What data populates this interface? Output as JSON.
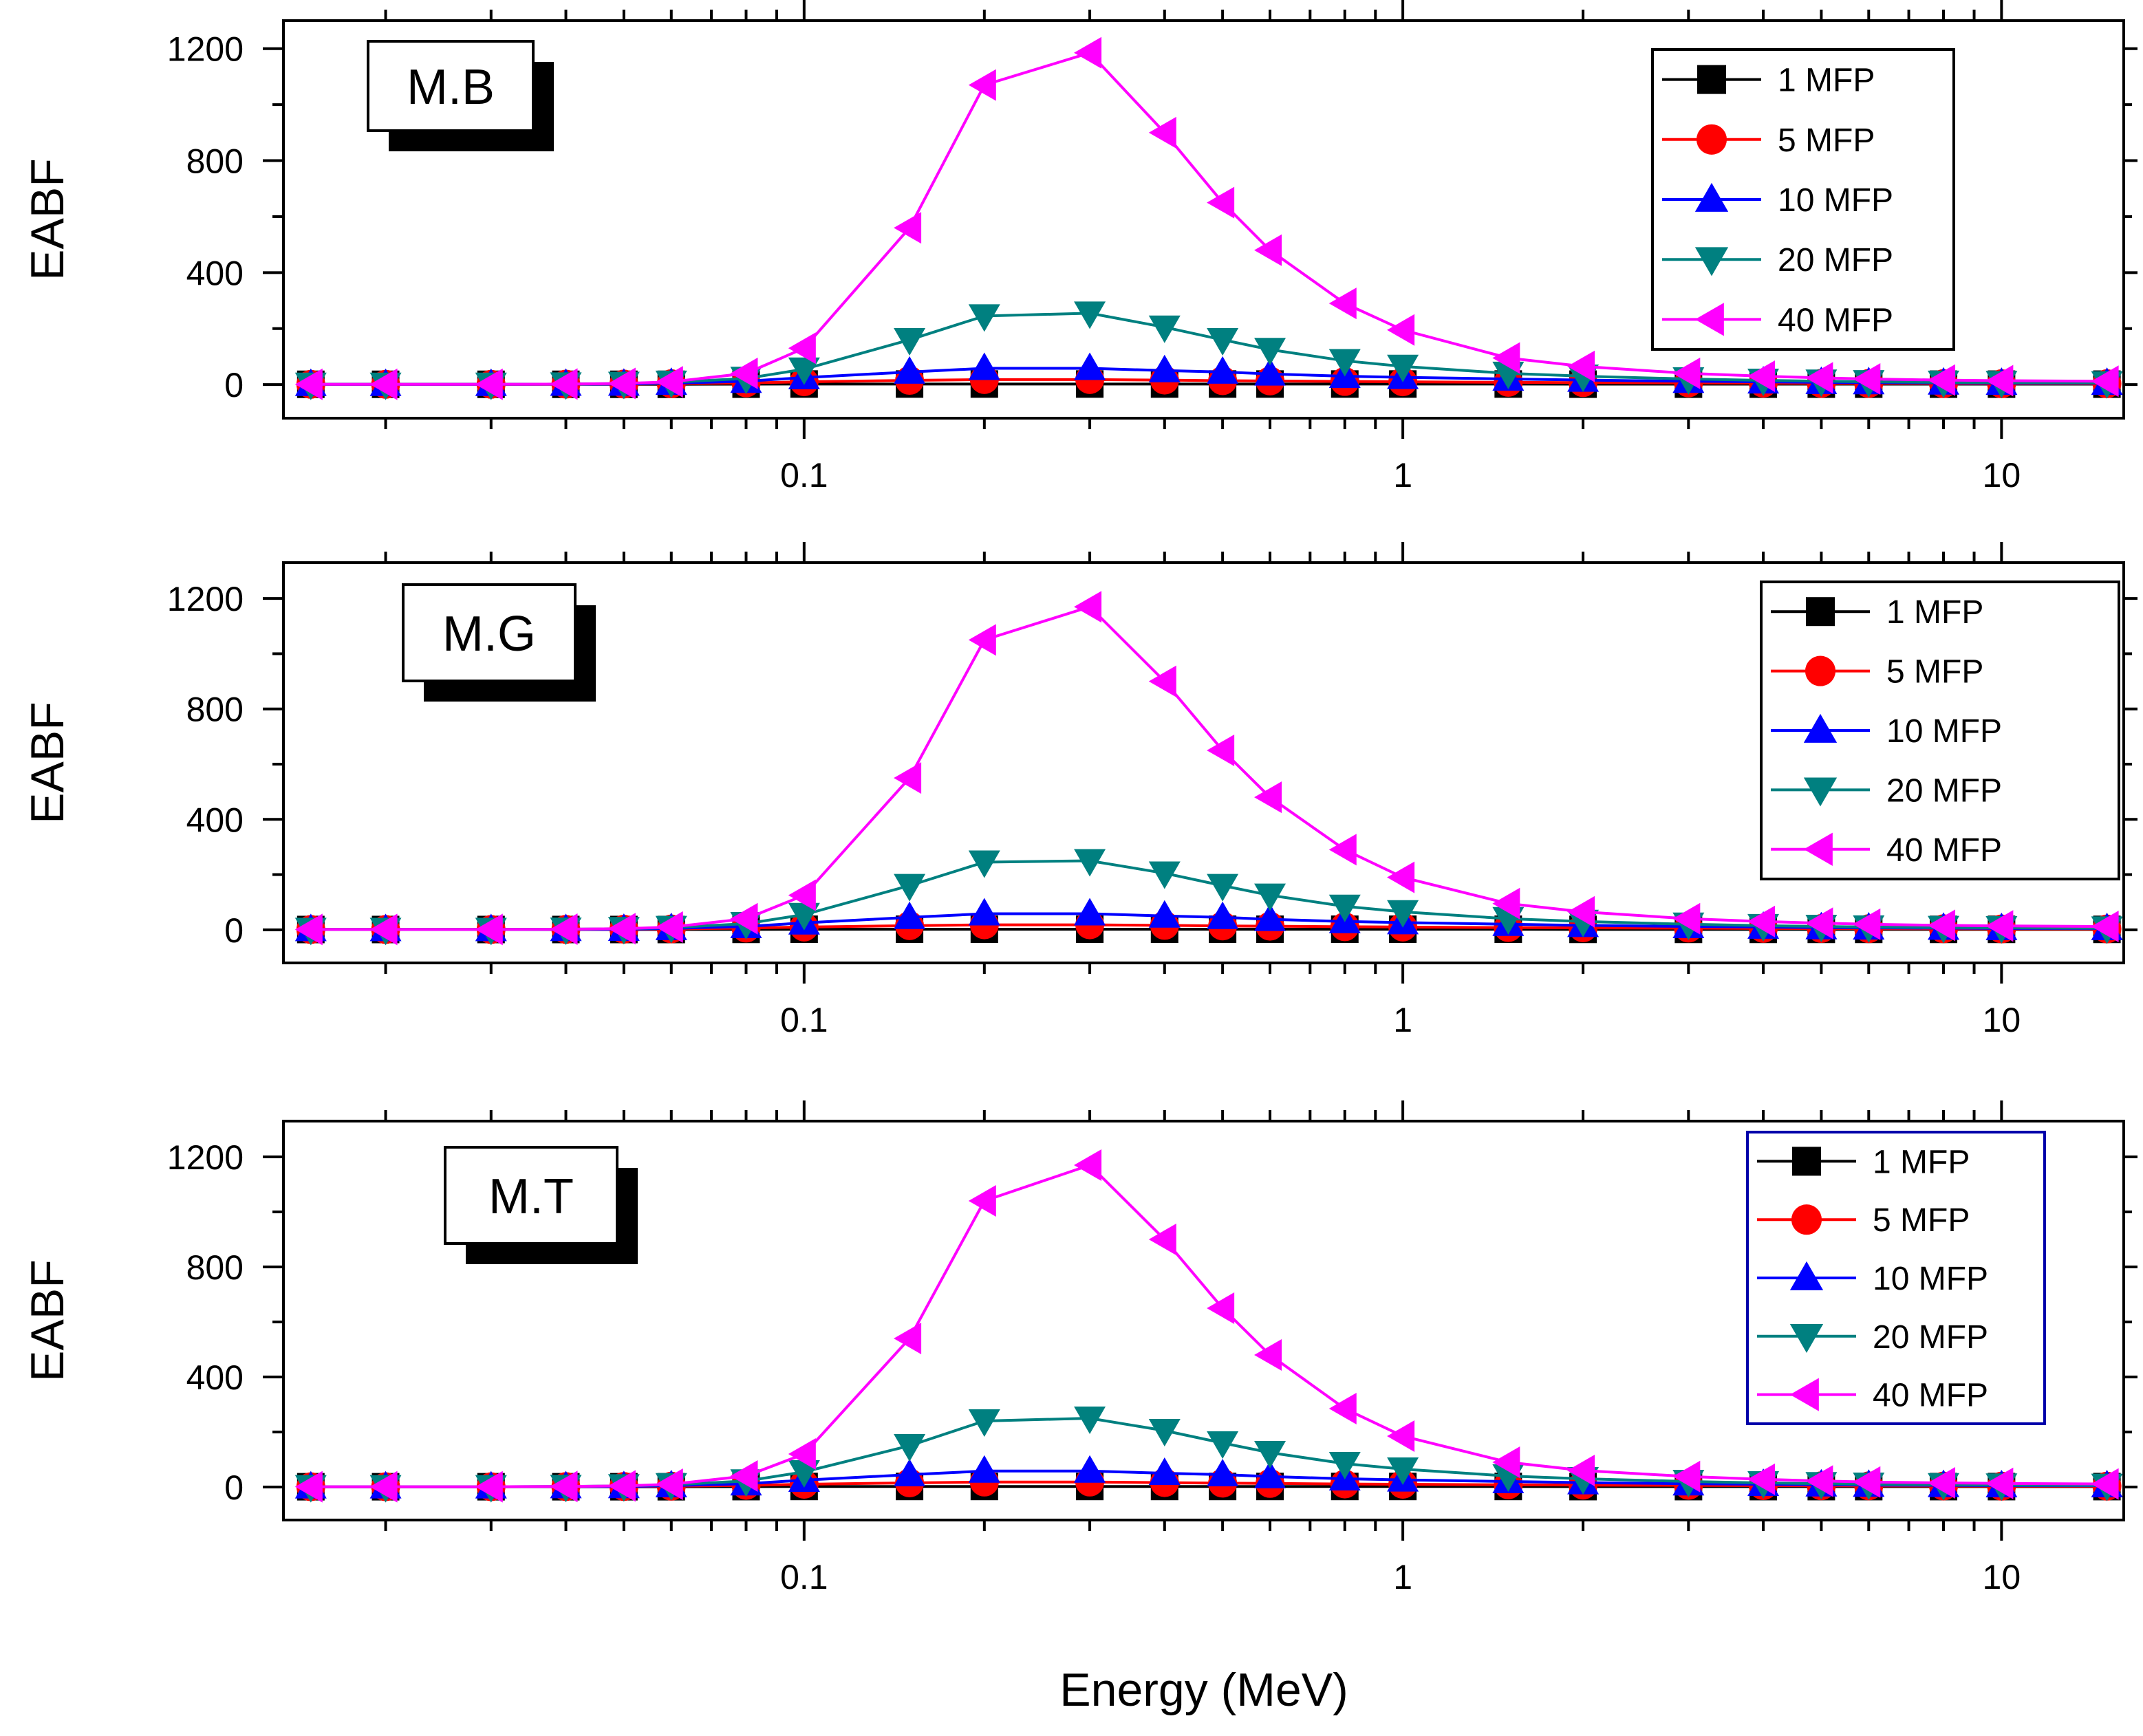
{
  "figure": {
    "xlabel": "Energy (MeV)"
  },
  "chart_data": [
    {
      "type": "line",
      "panel_label": "M.B",
      "ylabel": "EABF",
      "xscale": "log",
      "xlim": [
        0.0135,
        16
      ],
      "ylim": [
        -120,
        1300
      ],
      "xticks": [
        0.1,
        1,
        10
      ],
      "yticks": [
        0,
        400,
        800,
        1200
      ],
      "grid": false,
      "legend": "top-right",
      "x": [
        0.015,
        0.02,
        0.03,
        0.04,
        0.05,
        0.06,
        0.08,
        0.1,
        0.15,
        0.2,
        0.3,
        0.4,
        0.5,
        0.6,
        0.8,
        1,
        1.5,
        2,
        3,
        4,
        5,
        6,
        8,
        10,
        15
      ],
      "series": [
        {
          "name": "1 MFP",
          "color": "#000000",
          "marker": "square",
          "values": [
            1,
            1,
            1,
            1,
            1,
            1,
            1.5,
            2,
            2,
            2,
            2,
            2,
            2,
            2,
            2,
            2,
            2,
            1.5,
            1.5,
            1.5,
            1.5,
            1.5,
            1.5,
            1.5,
            1.5
          ]
        },
        {
          "name": "5 MFP",
          "color": "#ff0000",
          "marker": "circle",
          "values": [
            1,
            1,
            1,
            1.5,
            2,
            3,
            6,
            10,
            15,
            18,
            18,
            16,
            14,
            13,
            11,
            10,
            8,
            7,
            6,
            5,
            4.5,
            4,
            3.5,
            3,
            3
          ]
        },
        {
          "name": "10 MFP",
          "color": "#0000ff",
          "marker": "triangle-up",
          "values": [
            1,
            1,
            1,
            1.5,
            2,
            5,
            12,
            25,
            45,
            58,
            58,
            50,
            45,
            38,
            30,
            26,
            20,
            16,
            12,
            10,
            8,
            7,
            6,
            5,
            5
          ]
        },
        {
          "name": "20 MFP",
          "color": "#008080",
          "marker": "triangle-down",
          "values": [
            1,
            1,
            1,
            2,
            4,
            8,
            22,
            55,
            160,
            245,
            255,
            205,
            160,
            125,
            85,
            65,
            40,
            30,
            20,
            15,
            12,
            10,
            8,
            7,
            6
          ]
        },
        {
          "name": "40 MFP",
          "color": "#ff00ff",
          "marker": "triangle-left",
          "values": [
            1,
            1,
            1,
            2,
            4,
            10,
            40,
            130,
            560,
            1070,
            1185,
            900,
            650,
            480,
            290,
            195,
            95,
            65,
            40,
            30,
            24,
            20,
            16,
            14,
            12
          ]
        }
      ]
    },
    {
      "type": "line",
      "panel_label": "M.G",
      "ylabel": "EABF",
      "xscale": "log",
      "xlim": [
        0.0135,
        16
      ],
      "ylim": [
        -120,
        1330
      ],
      "xticks": [
        0.1,
        1,
        10
      ],
      "yticks": [
        0,
        400,
        800,
        1200
      ],
      "grid": false,
      "legend": "top-right",
      "x": [
        0.015,
        0.02,
        0.03,
        0.04,
        0.05,
        0.06,
        0.08,
        0.1,
        0.15,
        0.2,
        0.3,
        0.4,
        0.5,
        0.6,
        0.8,
        1,
        1.5,
        2,
        3,
        4,
        5,
        6,
        8,
        10,
        15
      ],
      "series": [
        {
          "name": "1 MFP",
          "color": "#000000",
          "marker": "square",
          "values": [
            1,
            1,
            1,
            1,
            1,
            1,
            1.5,
            2,
            2,
            2,
            2,
            2,
            2,
            2,
            2,
            2,
            2,
            1.5,
            1.5,
            1.5,
            1.5,
            1.5,
            1.5,
            1.5,
            1.5
          ]
        },
        {
          "name": "5 MFP",
          "color": "#ff0000",
          "marker": "circle",
          "values": [
            1,
            1,
            1,
            1.5,
            2,
            3,
            6,
            10,
            15,
            18,
            18,
            16,
            14,
            13,
            11,
            10,
            8,
            7,
            6,
            5,
            4.5,
            4,
            3.5,
            3,
            3
          ]
        },
        {
          "name": "10 MFP",
          "color": "#0000ff",
          "marker": "triangle-up",
          "values": [
            1,
            1,
            1,
            1.5,
            2,
            5,
            12,
            25,
            45,
            58,
            58,
            50,
            45,
            38,
            30,
            26,
            20,
            16,
            12,
            10,
            8,
            7,
            6,
            5,
            5
          ]
        },
        {
          "name": "20 MFP",
          "color": "#008080",
          "marker": "triangle-down",
          "values": [
            1,
            1,
            1,
            2,
            4,
            8,
            22,
            55,
            160,
            245,
            250,
            205,
            160,
            125,
            85,
            65,
            40,
            30,
            20,
            15,
            12,
            10,
            8,
            7,
            6
          ]
        },
        {
          "name": "40 MFP",
          "color": "#ff00ff",
          "marker": "triangle-left",
          "values": [
            1,
            1,
            1,
            2,
            4,
            10,
            40,
            125,
            550,
            1050,
            1170,
            900,
            650,
            480,
            290,
            190,
            95,
            65,
            40,
            30,
            24,
            20,
            16,
            14,
            12
          ]
        }
      ]
    },
    {
      "type": "line",
      "panel_label": "M.T",
      "ylabel": "EABF",
      "xscale": "log",
      "xlim": [
        0.0135,
        16
      ],
      "ylim": [
        -120,
        1330
      ],
      "xticks": [
        0.1,
        1,
        10
      ],
      "yticks": [
        0,
        400,
        800,
        1200
      ],
      "grid": false,
      "legend": "top-right",
      "x": [
        0.015,
        0.02,
        0.03,
        0.04,
        0.05,
        0.06,
        0.08,
        0.1,
        0.15,
        0.2,
        0.3,
        0.4,
        0.5,
        0.6,
        0.8,
        1,
        1.5,
        2,
        3,
        4,
        5,
        6,
        8,
        10,
        15
      ],
      "series": [
        {
          "name": "1 MFP",
          "color": "#000000",
          "marker": "square",
          "values": [
            1,
            1,
            1,
            1,
            1,
            1,
            1.5,
            2,
            2,
            2,
            2,
            2,
            2,
            2,
            2,
            2,
            2,
            1.5,
            1.5,
            1.5,
            1.5,
            1.5,
            1.5,
            1.5,
            1.5
          ]
        },
        {
          "name": "5 MFP",
          "color": "#ff0000",
          "marker": "circle",
          "values": [
            1,
            1,
            1,
            1.5,
            2,
            3,
            6,
            10,
            15,
            18,
            18,
            16,
            14,
            13,
            11,
            10,
            8,
            7,
            6,
            5,
            4.5,
            4,
            3.5,
            3,
            3
          ]
        },
        {
          "name": "10 MFP",
          "color": "#0000ff",
          "marker": "triangle-up",
          "values": [
            1,
            1,
            1,
            1.5,
            2,
            5,
            12,
            25,
            45,
            58,
            58,
            50,
            45,
            38,
            30,
            26,
            20,
            16,
            12,
            10,
            8,
            7,
            6,
            5,
            5
          ]
        },
        {
          "name": "20 MFP",
          "color": "#008080",
          "marker": "triangle-down",
          "values": [
            1,
            1,
            1,
            2,
            4,
            8,
            22,
            55,
            150,
            240,
            250,
            205,
            160,
            125,
            85,
            65,
            40,
            30,
            20,
            15,
            12,
            10,
            8,
            7,
            6
          ]
        },
        {
          "name": "40 MFP",
          "color": "#ff00ff",
          "marker": "triangle-left",
          "values": [
            1,
            1,
            1,
            2,
            4,
            10,
            40,
            120,
            540,
            1040,
            1170,
            900,
            650,
            480,
            285,
            185,
            90,
            60,
            38,
            28,
            22,
            18,
            15,
            13,
            11
          ]
        }
      ]
    }
  ]
}
